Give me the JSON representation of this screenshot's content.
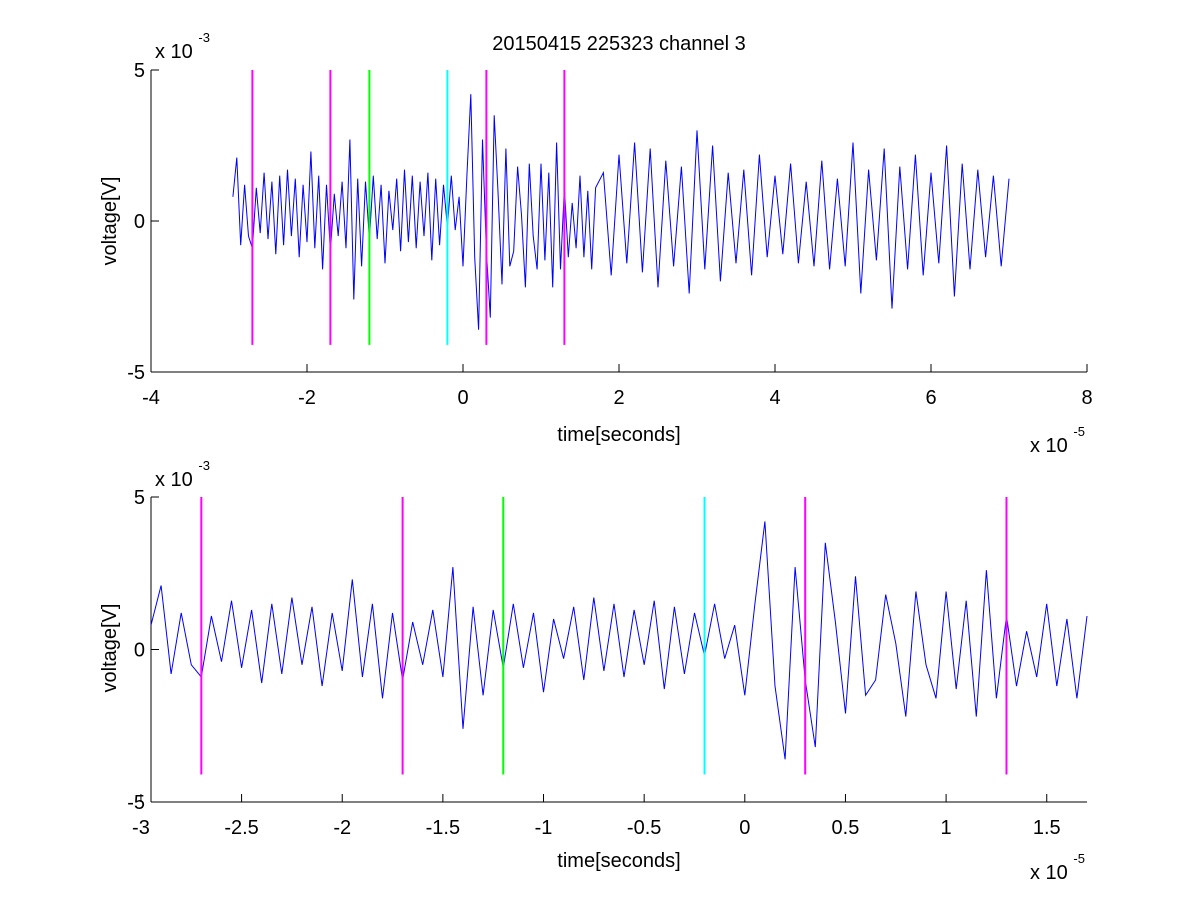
{
  "chart_data": [
    {
      "type": "line",
      "title": "20150415 225323 channel 3",
      "xlabel": "time[seconds]",
      "ylabel": "voltage[V]",
      "x_multiplier": "x 10",
      "x_exponent": "-5",
      "y_multiplier": "x 10",
      "y_exponent": "-3",
      "xlim": [
        -4,
        8
      ],
      "ylim": [
        -5,
        5
      ],
      "xticks": [
        -4,
        -2,
        0,
        2,
        4,
        6,
        8
      ],
      "xtick_labels": [
        "-4",
        "-2",
        "0",
        "2",
        "4",
        "6",
        "8"
      ],
      "yticks": [
        -5,
        0,
        5
      ],
      "ytick_labels": [
        "-5",
        "0",
        "5"
      ],
      "grid": false,
      "series": [
        {
          "color": "#0000ff",
          "x": [
            -2.95,
            -2.9,
            -2.85,
            -2.8,
            -2.75,
            -2.7,
            -2.65,
            -2.6,
            -2.55,
            -2.5,
            -2.45,
            -2.4,
            -2.35,
            -2.3,
            -2.25,
            -2.2,
            -2.15,
            -2.1,
            -2.05,
            -2.0,
            -1.95,
            -1.9,
            -1.85,
            -1.8,
            -1.75,
            -1.7,
            -1.65,
            -1.6,
            -1.55,
            -1.5,
            -1.45,
            -1.4,
            -1.35,
            -1.3,
            -1.25,
            -1.2,
            -1.15,
            -1.1,
            -1.05,
            -1.0,
            -0.95,
            -0.9,
            -0.85,
            -0.8,
            -0.75,
            -0.7,
            -0.65,
            -0.6,
            -0.55,
            -0.5,
            -0.45,
            -0.4,
            -0.35,
            -0.3,
            -0.25,
            -0.2,
            -0.15,
            -0.1,
            -0.05,
            0.0,
            0.05,
            0.1,
            0.15,
            0.2,
            0.25,
            0.3,
            0.35,
            0.4,
            0.45,
            0.5,
            0.55,
            0.6,
            0.65,
            0.7,
            0.75,
            0.8,
            0.85,
            0.9,
            0.95,
            1.0,
            1.05,
            1.1,
            1.15,
            1.2,
            1.25,
            1.3,
            1.35,
            1.4,
            1.45,
            1.5,
            1.55,
            1.6,
            1.65,
            1.7,
            1.8,
            1.9,
            2.0,
            2.1,
            2.2,
            2.3,
            2.4,
            2.5,
            2.6,
            2.7,
            2.8,
            2.9,
            3.0,
            3.1,
            3.2,
            3.3,
            3.4,
            3.5,
            3.6,
            3.7,
            3.8,
            3.9,
            4.0,
            4.1,
            4.2,
            4.3,
            4.4,
            4.5,
            4.6,
            4.7,
            4.8,
            4.9,
            5.0,
            5.1,
            5.2,
            5.3,
            5.4,
            5.5,
            5.6,
            5.7,
            5.8,
            5.9,
            6.0,
            6.1,
            6.2,
            6.3,
            6.4,
            6.5,
            6.6,
            6.7,
            6.8,
            6.9,
            7.0
          ],
          "values": [
            0.8,
            2.1,
            -0.8,
            1.2,
            -0.5,
            -0.9,
            1.1,
            -0.4,
            1.6,
            -0.6,
            1.3,
            -1.1,
            1.5,
            -0.8,
            1.7,
            -0.5,
            1.4,
            -1.2,
            1.2,
            -0.7,
            2.3,
            -0.9,
            1.5,
            -1.6,
            1.2,
            -1.0,
            0.9,
            -0.5,
            1.3,
            -0.9,
            2.7,
            -2.6,
            1.4,
            -1.5,
            1.3,
            -0.6,
            1.5,
            -0.6,
            1.2,
            -1.4,
            1.0,
            -0.3,
            1.4,
            -1.0,
            1.7,
            -0.7,
            1.5,
            -0.9,
            1.3,
            -0.5,
            1.6,
            -1.3,
            1.4,
            -0.8,
            1.2,
            -0.2,
            1.5,
            -0.3,
            0.8,
            -1.5,
            1.5,
            4.2,
            -1.2,
            -3.6,
            2.7,
            -1.0,
            -3.2,
            3.5,
            0.9,
            -2.1,
            2.4,
            -1.5,
            -1.0,
            1.8,
            0.2,
            -2.2,
            1.9,
            -0.5,
            -1.6,
            1.9,
            -1.3,
            1.6,
            -2.2,
            2.6,
            -1.6,
            1.1,
            -1.2,
            0.6,
            -0.9,
            1.5,
            -1.2,
            1.0,
            -1.6,
            1.1,
            1.6,
            -1.8,
            2.2,
            -1.4,
            2.6,
            -1.7,
            2.4,
            -2.2,
            2.0,
            -1.5,
            1.8,
            -2.4,
            3.0,
            -1.6,
            2.5,
            -2.0,
            1.6,
            -1.4,
            1.7,
            -1.8,
            2.2,
            -1.2,
            1.5,
            -1.1,
            1.9,
            -1.4,
            1.3,
            -1.5,
            2.0,
            -1.6,
            1.4,
            -1.5,
            2.6,
            -2.4,
            1.7,
            -1.3,
            2.4,
            -2.9,
            1.8,
            -1.6,
            2.2,
            -1.8,
            1.6,
            -1.4,
            2.5,
            -2.5,
            1.9,
            -1.6,
            1.7,
            -1.2,
            1.5,
            -1.5,
            1.4
          ]
        }
      ],
      "markers": [
        {
          "x": -2.7,
          "y_from": -4.1,
          "y_to": 5.0,
          "color": "#ff00ff"
        },
        {
          "x": -1.7,
          "y_from": -4.1,
          "y_to": 5.0,
          "color": "#ff00ff"
        },
        {
          "x": -1.2,
          "y_from": -4.1,
          "y_to": 5.0,
          "color": "#00ff00"
        },
        {
          "x": -0.2,
          "y_from": -4.1,
          "y_to": 5.0,
          "color": "#00ffff"
        },
        {
          "x": 0.3,
          "y_from": -4.1,
          "y_to": 5.0,
          "color": "#ff00ff"
        },
        {
          "x": 1.3,
          "y_from": -4.1,
          "y_to": 5.0,
          "color": "#ff00ff"
        }
      ]
    },
    {
      "type": "line",
      "title": "",
      "xlabel": "time[seconds]",
      "ylabel": "voltage[V]",
      "x_multiplier": "x 10",
      "x_exponent": "-5",
      "y_multiplier": "x 10",
      "y_exponent": "-3",
      "xlim": [
        -2.95,
        1.7
      ],
      "ylim": [
        -5,
        5
      ],
      "xticks": [
        -3,
        -2.5,
        -2,
        -1.5,
        -1,
        -0.5,
        0,
        0.5,
        1,
        1.5
      ],
      "xtick_labels": [
        "-3",
        "-2.5",
        "-2",
        "-1.5",
        "-1",
        "-0.5",
        "0",
        "0.5",
        "1",
        "1.5"
      ],
      "yticks": [
        -5,
        0,
        5
      ],
      "ytick_labels": [
        "-5",
        "0",
        "5"
      ],
      "grid": false,
      "series": [
        {
          "color": "#0000ff",
          "x": [
            -2.95,
            -2.9,
            -2.85,
            -2.8,
            -2.75,
            -2.7,
            -2.65,
            -2.6,
            -2.55,
            -2.5,
            -2.45,
            -2.4,
            -2.35,
            -2.3,
            -2.25,
            -2.2,
            -2.15,
            -2.1,
            -2.05,
            -2.0,
            -1.95,
            -1.9,
            -1.85,
            -1.8,
            -1.75,
            -1.7,
            -1.65,
            -1.6,
            -1.55,
            -1.5,
            -1.45,
            -1.4,
            -1.35,
            -1.3,
            -1.25,
            -1.2,
            -1.15,
            -1.1,
            -1.05,
            -1.0,
            -0.95,
            -0.9,
            -0.85,
            -0.8,
            -0.75,
            -0.7,
            -0.65,
            -0.6,
            -0.55,
            -0.5,
            -0.45,
            -0.4,
            -0.35,
            -0.3,
            -0.25,
            -0.2,
            -0.15,
            -0.1,
            -0.05,
            0.0,
            0.05,
            0.1,
            0.15,
            0.2,
            0.25,
            0.3,
            0.35,
            0.4,
            0.45,
            0.5,
            0.55,
            0.6,
            0.65,
            0.7,
            0.75,
            0.8,
            0.85,
            0.9,
            0.95,
            1.0,
            1.05,
            1.1,
            1.15,
            1.2,
            1.25,
            1.3,
            1.35,
            1.4,
            1.45,
            1.5,
            1.55,
            1.6,
            1.65,
            1.7
          ],
          "values": [
            0.8,
            2.1,
            -0.8,
            1.2,
            -0.5,
            -0.9,
            1.1,
            -0.4,
            1.6,
            -0.6,
            1.3,
            -1.1,
            1.5,
            -0.8,
            1.7,
            -0.5,
            1.4,
            -1.2,
            1.2,
            -0.7,
            2.3,
            -0.9,
            1.5,
            -1.6,
            1.2,
            -1.0,
            0.9,
            -0.5,
            1.3,
            -0.9,
            2.7,
            -2.6,
            1.4,
            -1.5,
            1.3,
            -0.6,
            1.5,
            -0.6,
            1.2,
            -1.4,
            1.0,
            -0.3,
            1.4,
            -1.0,
            1.7,
            -0.7,
            1.5,
            -0.9,
            1.3,
            -0.5,
            1.6,
            -1.3,
            1.4,
            -0.8,
            1.2,
            -0.2,
            1.5,
            -0.3,
            0.8,
            -1.5,
            1.5,
            4.2,
            -1.2,
            -3.6,
            2.7,
            -1.0,
            -3.2,
            3.5,
            0.9,
            -2.1,
            2.4,
            -1.5,
            -1.0,
            1.8,
            0.2,
            -2.2,
            1.9,
            -0.5,
            -1.6,
            1.9,
            -1.3,
            1.6,
            -2.2,
            2.6,
            -1.6,
            1.1,
            -1.2,
            0.6,
            -0.9,
            1.5,
            -1.2,
            1.0,
            -1.6,
            1.1
          ]
        }
      ],
      "markers": [
        {
          "x": -2.7,
          "y_from": -4.1,
          "y_to": 5.0,
          "color": "#ff00ff"
        },
        {
          "x": -1.7,
          "y_from": -4.1,
          "y_to": 5.0,
          "color": "#ff00ff"
        },
        {
          "x": -1.2,
          "y_from": -4.1,
          "y_to": 5.0,
          "color": "#00ff00"
        },
        {
          "x": -0.2,
          "y_from": -4.1,
          "y_to": 5.0,
          "color": "#00ffff"
        },
        {
          "x": 0.3,
          "y_from": -4.1,
          "y_to": 5.0,
          "color": "#ff00ff"
        },
        {
          "x": 1.3,
          "y_from": -4.1,
          "y_to": 5.0,
          "color": "#ff00ff"
        }
      ]
    }
  ]
}
